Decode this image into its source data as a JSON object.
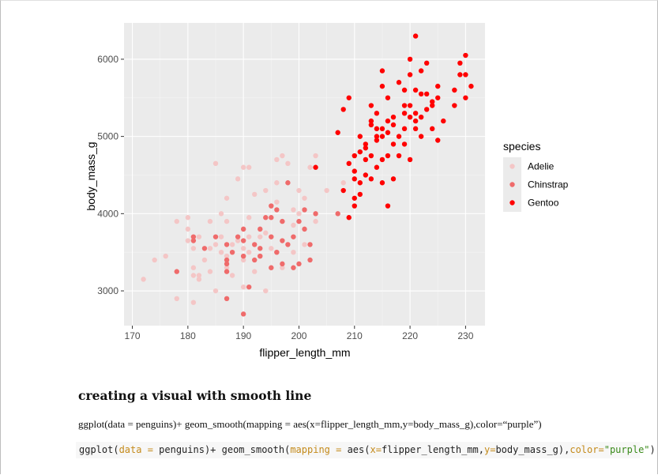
{
  "chart_data": {
    "type": "scatter",
    "xlabel": "flipper_length_mm",
    "ylabel": "body_mass_g",
    "xlim": [
      168.5,
      233.5
    ],
    "ylim": [
      2550,
      6470
    ],
    "xticks": [
      170,
      180,
      190,
      200,
      210,
      220,
      230
    ],
    "yticks": [
      3000,
      4000,
      5000,
      6000
    ],
    "grid": true,
    "legend": {
      "title": "species",
      "position": "right"
    },
    "series": [
      {
        "name": "Adelie",
        "color": "#f4c6c6",
        "points": [
          [
            172,
            3150
          ],
          [
            174,
            3400
          ],
          [
            176,
            3450
          ],
          [
            178,
            3900
          ],
          [
            178,
            2900
          ],
          [
            180,
            3950
          ],
          [
            180,
            3800
          ],
          [
            180,
            3650
          ],
          [
            181,
            3200
          ],
          [
            181,
            3550
          ],
          [
            181,
            3300
          ],
          [
            182,
            3700
          ],
          [
            182,
            3200
          ],
          [
            182,
            3150
          ],
          [
            183,
            3400
          ],
          [
            184,
            3550
          ],
          [
            184,
            3900
          ],
          [
            185,
            3600
          ],
          [
            185,
            3000
          ],
          [
            185,
            4650
          ],
          [
            186,
            3700
          ],
          [
            186,
            3500
          ],
          [
            187,
            3300
          ],
          [
            187,
            3450
          ],
          [
            187,
            3900
          ],
          [
            188,
            3600
          ],
          [
            189,
            3650
          ],
          [
            190,
            3400
          ],
          [
            190,
            3800
          ],
          [
            190,
            4600
          ],
          [
            190,
            3050
          ],
          [
            191,
            3700
          ],
          [
            191,
            3500
          ],
          [
            191,
            3950
          ],
          [
            192,
            3250
          ],
          [
            193,
            3450
          ],
          [
            193,
            3800
          ],
          [
            194,
            4300
          ],
          [
            194,
            3000
          ],
          [
            195,
            3300
          ],
          [
            195,
            4100
          ],
          [
            195,
            3550
          ],
          [
            196,
            4150
          ],
          [
            196,
            3500
          ],
          [
            196,
            4700
          ],
          [
            197,
            3300
          ],
          [
            197,
            3900
          ],
          [
            197,
            4750
          ],
          [
            198,
            3600
          ],
          [
            199,
            4050
          ],
          [
            199,
            3850
          ],
          [
            200,
            4000
          ],
          [
            201,
            4200
          ],
          [
            201,
            3600
          ],
          [
            202,
            4600
          ],
          [
            203,
            3900
          ],
          [
            205,
            4300
          ],
          [
            208,
            4400
          ],
          [
            181,
            2850
          ],
          [
            184,
            3250
          ],
          [
            186,
            4000
          ],
          [
            188,
            3200
          ],
          [
            189,
            4450
          ],
          [
            190,
            3550
          ],
          [
            192,
            4250
          ],
          [
            194,
            3750
          ],
          [
            196,
            4400
          ],
          [
            198,
            4650
          ],
          [
            200,
            4300
          ],
          [
            203,
            4750
          ],
          [
            187,
            4200
          ],
          [
            191,
            4600
          ],
          [
            193,
            3700
          ],
          [
            199,
            3500
          ]
        ]
      },
      {
        "name": "Chinstrap",
        "color": "#ef6b6b",
        "points": [
          [
            178,
            3250
          ],
          [
            181,
            3650
          ],
          [
            181,
            3700
          ],
          [
            183,
            3550
          ],
          [
            185,
            3700
          ],
          [
            187,
            3250
          ],
          [
            187,
            3350
          ],
          [
            187,
            3600
          ],
          [
            187,
            2900
          ],
          [
            188,
            3500
          ],
          [
            190,
            3650
          ],
          [
            190,
            3450
          ],
          [
            190,
            3800
          ],
          [
            191,
            3050
          ],
          [
            192,
            3400
          ],
          [
            192,
            3600
          ],
          [
            193,
            3450
          ],
          [
            193,
            3800
          ],
          [
            194,
            3950
          ],
          [
            195,
            3300
          ],
          [
            195,
            4100
          ],
          [
            195,
            3700
          ],
          [
            196,
            3500
          ],
          [
            196,
            4050
          ],
          [
            197,
            3900
          ],
          [
            197,
            3650
          ],
          [
            198,
            3600
          ],
          [
            198,
            4400
          ],
          [
            199,
            3300
          ],
          [
            199,
            3700
          ],
          [
            200,
            3350
          ],
          [
            200,
            3900
          ],
          [
            201,
            3800
          ],
          [
            201,
            4050
          ],
          [
            202,
            3600
          ],
          [
            202,
            3400
          ],
          [
            203,
            4000
          ],
          [
            207,
            4000
          ],
          [
            190,
            2700
          ],
          [
            193,
            3550
          ],
          [
            195,
            3950
          ],
          [
            197,
            3350
          ],
          [
            187,
            3400
          ],
          [
            189,
            3700
          ]
        ]
      },
      {
        "name": "Gentoo",
        "color": "#ff0000",
        "points": [
          [
            203,
            4600
          ],
          [
            207,
            5050
          ],
          [
            208,
            5350
          ],
          [
            208,
            4300
          ],
          [
            209,
            4650
          ],
          [
            209,
            5500
          ],
          [
            209,
            3950
          ],
          [
            210,
            4750
          ],
          [
            210,
            4450
          ],
          [
            210,
            4200
          ],
          [
            210,
            4100
          ],
          [
            211,
            4800
          ],
          [
            211,
            4400
          ],
          [
            211,
            5000
          ],
          [
            211,
            4250
          ],
          [
            212,
            4850
          ],
          [
            212,
            4900
          ],
          [
            212,
            4500
          ],
          [
            213,
            5400
          ],
          [
            213,
            4450
          ],
          [
            213,
            4750
          ],
          [
            213,
            5200
          ],
          [
            214,
            5000
          ],
          [
            214,
            4600
          ],
          [
            214,
            5300
          ],
          [
            214,
            4950
          ],
          [
            215,
            5650
          ],
          [
            215,
            5100
          ],
          [
            215,
            5850
          ],
          [
            215,
            4700
          ],
          [
            215,
            4400
          ],
          [
            216,
            5500
          ],
          [
            216,
            4750
          ],
          [
            216,
            5050
          ],
          [
            216,
            4100
          ],
          [
            217,
            4900
          ],
          [
            217,
            5250
          ],
          [
            217,
            4450
          ],
          [
            218,
            5700
          ],
          [
            218,
            5000
          ],
          [
            218,
            4750
          ],
          [
            219,
            5600
          ],
          [
            219,
            4900
          ],
          [
            219,
            5300
          ],
          [
            219,
            5100
          ],
          [
            220,
            5800
          ],
          [
            220,
            5400
          ],
          [
            220,
            6000
          ],
          [
            220,
            5250
          ],
          [
            220,
            4700
          ],
          [
            221,
            5100
          ],
          [
            221,
            5200
          ],
          [
            221,
            5600
          ],
          [
            221,
            6300
          ],
          [
            222,
            5550
          ],
          [
            222,
            5000
          ],
          [
            222,
            5850
          ],
          [
            222,
            5250
          ],
          [
            223,
            5550
          ],
          [
            223,
            5950
          ],
          [
            224,
            5450
          ],
          [
            224,
            5100
          ],
          [
            225,
            5500
          ],
          [
            225,
            4950
          ],
          [
            226,
            5200
          ],
          [
            228,
            5600
          ],
          [
            228,
            5400
          ],
          [
            229,
            5800
          ],
          [
            229,
            5950
          ],
          [
            230,
            5800
          ],
          [
            230,
            6050
          ],
          [
            230,
            5500
          ],
          [
            231,
            5650
          ],
          [
            213,
            5150
          ],
          [
            215,
            5000
          ],
          [
            217,
            5150
          ],
          [
            219,
            5400
          ],
          [
            223,
            5350
          ],
          [
            225,
            5650
          ],
          [
            212,
            4700
          ],
          [
            216,
            5200
          ],
          [
            221,
            5300
          ],
          [
            224,
            5400
          ],
          [
            210,
            4550
          ],
          [
            214,
            5100
          ]
        ]
      }
    ]
  },
  "document": {
    "heading": "creating a visual with smooth line",
    "paragraph": "ggplot(data = penguins)+ geom_smooth(mapping = aes(x=flipper_length_mm,y=body_mass_g),color=“purple”)",
    "code": {
      "t1": "ggplot(",
      "t2": "data = ",
      "t3": "penguins)+ geom_smooth(",
      "t4": "mapping = ",
      "t5": "aes(",
      "t6": "x=",
      "t7": "flipper_length_mm,",
      "t8": "y=",
      "t9": "body_mass_g),",
      "t10": "color=",
      "t11": "\"purple\"",
      "t12": ")"
    }
  }
}
